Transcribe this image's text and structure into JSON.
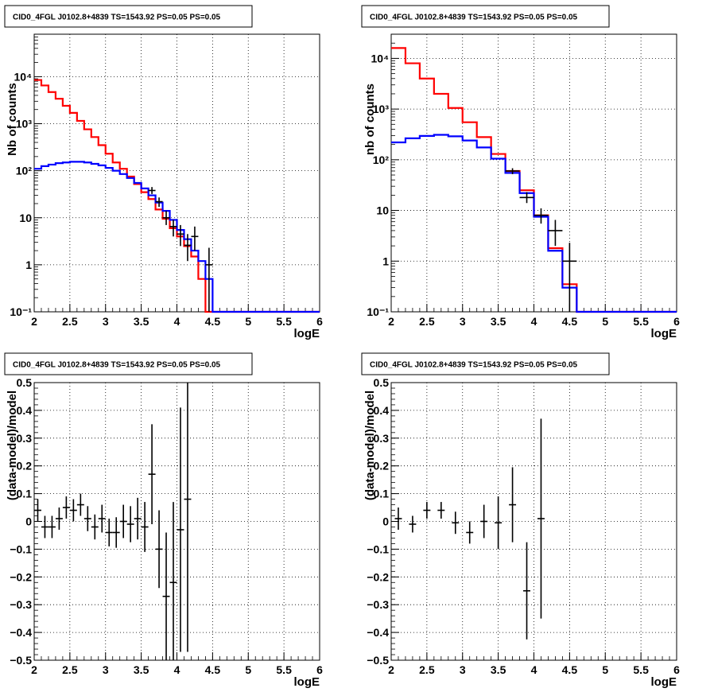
{
  "chart_data": [
    {
      "type": "line",
      "title": "CID0_4FGL J0102.8+4839 TS=1543.92 PS=0.05 PS=0.05",
      "xlabel": "logE",
      "ylabel": "Nb of counts",
      "xlim": [
        2,
        6
      ],
      "ylim": [
        0.1,
        80000
      ],
      "yscale": "log",
      "grid": true,
      "x_ticks": [
        "2",
        "2.5",
        "3",
        "3.5",
        "4",
        "4.5",
        "5",
        "5.5",
        "6"
      ],
      "y_ticks": [
        "10⁻¹",
        "1",
        "10",
        "10²",
        "10³",
        "10⁴"
      ],
      "bin_edges": [
        2.0,
        2.1,
        2.2,
        2.3,
        2.4,
        2.5,
        2.6,
        2.7,
        2.8,
        2.9,
        3.0,
        3.1,
        3.2,
        3.3,
        3.4,
        3.5,
        3.6,
        3.7,
        3.8,
        3.9,
        4.0,
        4.1,
        4.2,
        4.3,
        4.4,
        4.5,
        4.6,
        4.7,
        4.8,
        4.9,
        5.0,
        5.1,
        5.2,
        5.3,
        5.4,
        5.5,
        5.6,
        5.7,
        5.8,
        5.9,
        6.0
      ],
      "series": [
        {
          "color": "#ff0000",
          "values": [
            8500,
            6500,
            4700,
            3400,
            2400,
            1700,
            1150,
            760,
            520,
            350,
            230,
            150,
            110,
            75,
            52,
            35,
            25,
            15,
            9.5,
            6,
            4,
            2.5,
            1.5,
            0.5,
            0.1,
            0.1,
            0.1,
            0.1,
            0.1,
            0.1,
            0.1,
            0.1,
            0.1,
            0.1,
            0.1,
            0.1,
            0.1,
            0.1,
            0.1,
            0.1
          ]
        },
        {
          "color": "#0000ff",
          "values": [
            110,
            125,
            135,
            145,
            150,
            155,
            155,
            150,
            140,
            130,
            115,
            100,
            85,
            70,
            55,
            42,
            30,
            21,
            14,
            9,
            5.5,
            3.5,
            2,
            1.2,
            0.5,
            0.1,
            0.1,
            0.1,
            0.1,
            0.1,
            0.1,
            0.1,
            0.1,
            0.1,
            0.1,
            0.1,
            0.1,
            0.1,
            0.1,
            0.1
          ]
        }
      ],
      "points": [
        {
          "x": 3.65,
          "y": 38,
          "ylo": 32,
          "yhi": 45
        },
        {
          "x": 3.75,
          "y": 22,
          "ylo": 17,
          "yhi": 27
        },
        {
          "x": 3.85,
          "y": 10,
          "ylo": 7,
          "yhi": 14
        },
        {
          "x": 3.95,
          "y": 6.5,
          "ylo": 4,
          "yhi": 9
        },
        {
          "x": 4.05,
          "y": 4.5,
          "ylo": 2.5,
          "yhi": 7
        },
        {
          "x": 4.15,
          "y": 2.6,
          "ylo": 1.2,
          "yhi": 4.5
        },
        {
          "x": 4.25,
          "y": 4,
          "ylo": 2,
          "yhi": 6.5
        },
        {
          "x": 4.45,
          "y": 1,
          "ylo": 0.1,
          "yhi": 2.3
        }
      ]
    },
    {
      "type": "line",
      "title": "CID0_4FGL J0102.8+4839 TS=1543.92 PS=0.05 PS=0.05",
      "xlabel": "logE",
      "ylabel": "nb of counts",
      "xlim": [
        2,
        6
      ],
      "ylim": [
        0.1,
        30000
      ],
      "yscale": "log",
      "grid": true,
      "x_ticks": [
        "2",
        "2.5",
        "3",
        "3.5",
        "4",
        "4.5",
        "5",
        "5.5",
        "6"
      ],
      "y_ticks": [
        "10⁻¹",
        "1",
        "10",
        "10²",
        "10³",
        "10⁴"
      ],
      "bin_edges": [
        2.0,
        2.2,
        2.4,
        2.6,
        2.8,
        3.0,
        3.2,
        3.4,
        3.6,
        3.8,
        4.0,
        4.2,
        4.4,
        4.6,
        4.8,
        5.0,
        5.2,
        5.4,
        5.6,
        5.8,
        6.0
      ],
      "series": [
        {
          "color": "#ff0000",
          "values": [
            16000,
            8000,
            4000,
            2000,
            1050,
            550,
            280,
            130,
            60,
            25,
            8,
            1.8,
            0.35,
            0.1,
            0.1,
            0.1,
            0.1,
            0.1,
            0.1,
            0.1
          ]
        },
        {
          "color": "#0000ff",
          "values": [
            220,
            265,
            295,
            310,
            290,
            240,
            175,
            105,
            55,
            22,
            7.5,
            1.6,
            0.3,
            0.1,
            0.1,
            0.1,
            0.1,
            0.1,
            0.1,
            0.1
          ]
        }
      ],
      "points": [
        {
          "x": 3.7,
          "y": 60,
          "ylo": 52,
          "yhi": 68
        },
        {
          "x": 3.9,
          "y": 18,
          "ylo": 14,
          "yhi": 23
        },
        {
          "x": 4.1,
          "y": 8,
          "ylo": 5.5,
          "yhi": 11
        },
        {
          "x": 4.3,
          "y": 4,
          "ylo": 2,
          "yhi": 6.5
        },
        {
          "x": 4.5,
          "y": 1,
          "ylo": 0.1,
          "yhi": 2.3
        }
      ]
    },
    {
      "type": "scatter",
      "title": "CID0_4FGL J0102.8+4839 TS=1543.92 PS=0.05 PS=0.05",
      "xlabel": "logE",
      "ylabel": "(data-model)/model",
      "xlim": [
        2,
        6
      ],
      "ylim": [
        -0.5,
        0.5
      ],
      "grid": true,
      "x_ticks": [
        "2",
        "2.5",
        "3",
        "3.5",
        "4",
        "4.5",
        "5",
        "5.5",
        "6"
      ],
      "y_ticks": [
        "−0.5",
        "−0.4",
        "−0.3",
        "−0.2",
        "−0.1",
        "0",
        "0.1",
        "0.2",
        "0.3",
        "0.4",
        "0.5"
      ],
      "points": [
        {
          "x": 2.05,
          "y": 0.04,
          "err": 0.04
        },
        {
          "x": 2.15,
          "y": -0.02,
          "err": 0.04
        },
        {
          "x": 2.25,
          "y": -0.02,
          "err": 0.04
        },
        {
          "x": 2.35,
          "y": 0.01,
          "err": 0.04
        },
        {
          "x": 2.45,
          "y": 0.05,
          "err": 0.04
        },
        {
          "x": 2.55,
          "y": 0.04,
          "err": 0.04
        },
        {
          "x": 2.65,
          "y": 0.06,
          "err": 0.04
        },
        {
          "x": 2.75,
          "y": 0.01,
          "err": 0.045
        },
        {
          "x": 2.85,
          "y": -0.02,
          "err": 0.045
        },
        {
          "x": 2.95,
          "y": 0.01,
          "err": 0.05
        },
        {
          "x": 3.05,
          "y": -0.04,
          "err": 0.05
        },
        {
          "x": 3.15,
          "y": -0.04,
          "err": 0.055
        },
        {
          "x": 3.25,
          "y": 0.0,
          "err": 0.06
        },
        {
          "x": 3.35,
          "y": -0.01,
          "err": 0.065
        },
        {
          "x": 3.45,
          "y": 0.01,
          "err": 0.075
        },
        {
          "x": 3.55,
          "y": -0.02,
          "err": 0.09
        },
        {
          "x": 3.65,
          "y": 0.17,
          "err": 0.18
        },
        {
          "x": 3.75,
          "y": -0.1,
          "err": 0.14
        },
        {
          "x": 3.85,
          "y": -0.27,
          "err": 0.23
        },
        {
          "x": 3.95,
          "y": -0.22,
          "err": 0.29
        },
        {
          "x": 4.05,
          "y": -0.03,
          "err": 0.44
        },
        {
          "x": 4.15,
          "y": 0.08,
          "err": 0.55
        }
      ]
    },
    {
      "type": "scatter",
      "title": "CID0_4FGL J0102.8+4839 TS=1543.92 PS=0.05 PS=0.05",
      "xlabel": "logE",
      "ylabel": "(data-model)/model",
      "xlim": [
        2,
        6
      ],
      "ylim": [
        -0.5,
        0.5
      ],
      "grid": true,
      "x_ticks": [
        "2",
        "2.5",
        "3",
        "3.5",
        "4",
        "4.5",
        "5",
        "5.5",
        "6"
      ],
      "y_ticks": [
        "−0.5",
        "−0.4",
        "−0.3",
        "−0.2",
        "−0.1",
        "0",
        "0.1",
        "0.2",
        "0.3",
        "0.4",
        "0.5"
      ],
      "points": [
        {
          "x": 2.1,
          "y": 0.01,
          "err": 0.04
        },
        {
          "x": 2.3,
          "y": -0.01,
          "err": 0.03
        },
        {
          "x": 2.5,
          "y": 0.04,
          "err": 0.03
        },
        {
          "x": 2.7,
          "y": 0.04,
          "err": 0.03
        },
        {
          "x": 2.9,
          "y": -0.005,
          "err": 0.04
        },
        {
          "x": 3.1,
          "y": -0.04,
          "err": 0.04
        },
        {
          "x": 3.3,
          "y": 0.0,
          "err": 0.06
        },
        {
          "x": 3.5,
          "y": -0.005,
          "err": 0.095
        },
        {
          "x": 3.7,
          "y": 0.06,
          "err": 0.135
        },
        {
          "x": 3.9,
          "y": -0.25,
          "err": 0.175
        },
        {
          "x": 4.1,
          "y": 0.01,
          "err": 0.36
        }
      ]
    }
  ]
}
